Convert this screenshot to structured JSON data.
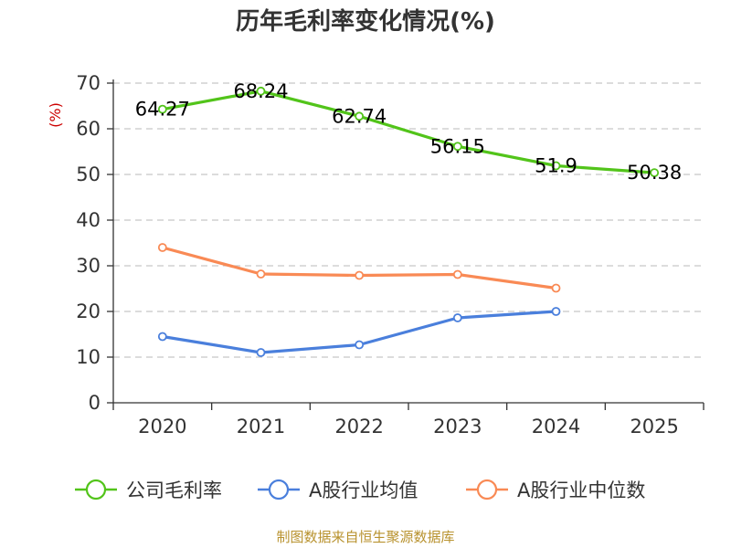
{
  "chart_data": {
    "type": "line",
    "title": "历年毛利率变化情况(%)",
    "ylabel": "(%)",
    "xlabel": "",
    "categories": [
      "2020",
      "2021",
      "2022",
      "2023",
      "2024",
      "2025"
    ],
    "ylim": [
      0,
      70
    ],
    "yticks": [
      0,
      10,
      20,
      30,
      40,
      50,
      60,
      70
    ],
    "grid": true,
    "legend_position": "bottom",
    "series": [
      {
        "name": "公司毛利率",
        "color": "#52c41a",
        "values": [
          64.27,
          68.24,
          62.74,
          56.15,
          51.9,
          50.38
        ],
        "labels": [
          "64.27",
          "68.24",
          "62.74",
          "56.15",
          "51.9",
          "50.38"
        ]
      },
      {
        "name": "A股行业均值",
        "color": "#4a7fdc",
        "values": [
          14.5,
          11.0,
          12.7,
          18.6,
          20.0,
          null
        ]
      },
      {
        "name": "A股行业中位数",
        "color": "#f98a55",
        "values": [
          34.0,
          28.2,
          27.9,
          28.1,
          25.1,
          null
        ]
      }
    ]
  },
  "colors": {
    "unit_label": "#cc0000",
    "source": "#b8922e"
  },
  "source": "制图数据来自恒生聚源数据库"
}
